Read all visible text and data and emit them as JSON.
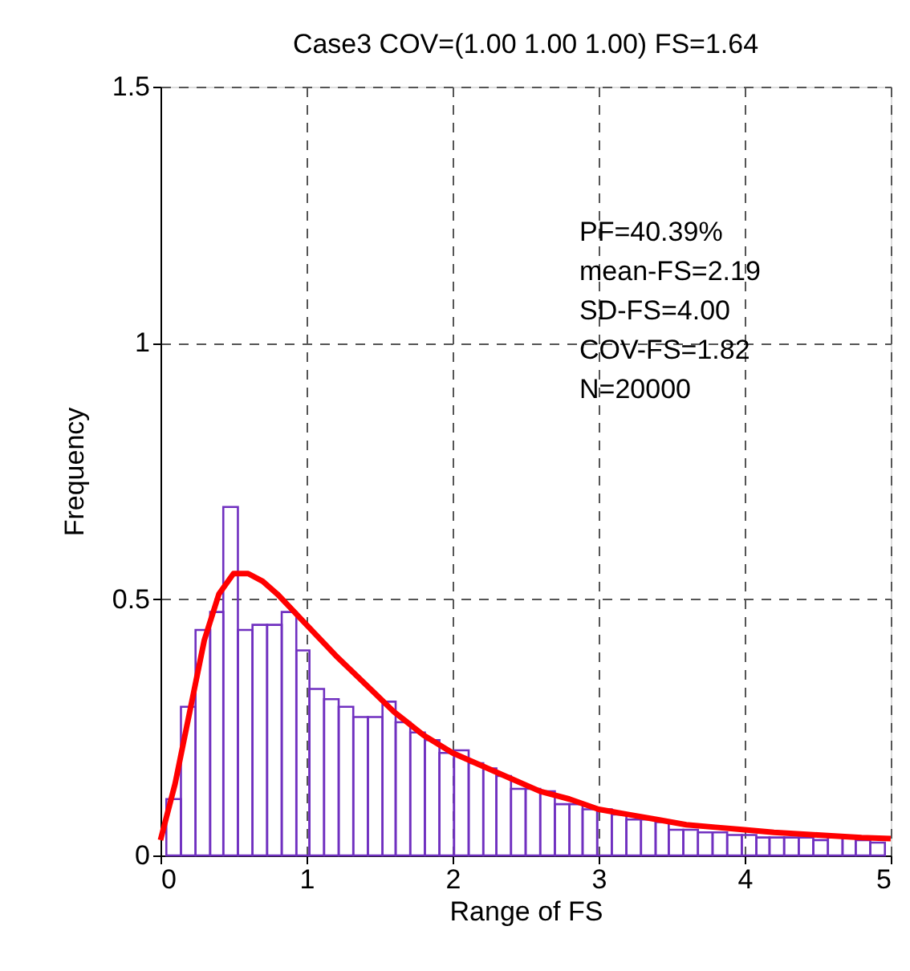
{
  "chart_data": {
    "type": "histogram",
    "title": "Case3 COV=(1.00 1.00 1.00) FS=1.64",
    "xlabel": "Range of FS",
    "ylabel": "Frequency",
    "xlim": [
      0,
      5
    ],
    "xticks": [
      0,
      1,
      2,
      3,
      4,
      5
    ],
    "ylim": [
      0,
      1.5
    ],
    "yticks": [
      0,
      0.5,
      1,
      1.5
    ],
    "grid": true,
    "annotations": [
      "PF=40.39%",
      "mean-FS=2.19",
      "SD-FS=4.00",
      "COV-FS=1.82",
      "N=20000"
    ],
    "series": [
      {
        "color": "#7030c0",
        "bins": [
          0.04,
          0.14,
          0.24,
          0.34,
          0.43,
          0.53,
          0.63,
          0.73,
          0.83,
          0.93,
          1.02,
          1.12,
          1.22,
          1.32,
          1.42,
          1.52,
          1.61,
          1.71,
          1.81,
          1.91,
          2.01,
          2.11,
          2.21,
          2.3,
          2.4,
          2.5,
          2.6,
          2.7,
          2.8,
          2.89,
          2.99,
          3.09,
          3.19,
          3.29,
          3.39,
          3.48,
          3.58,
          3.68,
          3.78,
          3.88,
          3.98,
          4.08,
          4.17,
          4.27,
          4.37,
          4.47,
          4.57,
          4.67,
          4.76,
          4.86,
          4.96
        ],
        "values": [
          0.11,
          0.29,
          0.44,
          0.475,
          0.68,
          0.44,
          0.45,
          0.45,
          0.475,
          0.4,
          0.325,
          0.305,
          0.29,
          0.27,
          0.27,
          0.3,
          0.26,
          0.24,
          0.225,
          0.2,
          0.205,
          0.18,
          0.17,
          0.155,
          0.13,
          0.13,
          0.125,
          0.1,
          0.1,
          0.09,
          0.09,
          0.08,
          0.07,
          0.07,
          0.065,
          0.05,
          0.05,
          0.045,
          0.045,
          0.04,
          0.04,
          0.035,
          0.035,
          0.035,
          0.035,
          0.03,
          0.035,
          0.035,
          0.03,
          0.025
        ]
      },
      {
        "type": "line",
        "color": "#ff0000",
        "x": [
          0,
          0.1,
          0.2,
          0.3,
          0.4,
          0.5,
          0.6,
          0.7,
          0.8,
          0.9,
          1.0,
          1.2,
          1.4,
          1.6,
          1.8,
          2.0,
          2.2,
          2.4,
          2.6,
          2.8,
          3.0,
          3.2,
          3.4,
          3.6,
          3.8,
          4.0,
          4.2,
          4.5,
          4.8,
          5.0
        ],
        "values": [
          0.03,
          0.14,
          0.28,
          0.42,
          0.51,
          0.55,
          0.55,
          0.535,
          0.51,
          0.48,
          0.45,
          0.39,
          0.335,
          0.28,
          0.235,
          0.2,
          0.175,
          0.15,
          0.125,
          0.11,
          0.09,
          0.08,
          0.07,
          0.06,
          0.055,
          0.05,
          0.045,
          0.04,
          0.035,
          0.033
        ]
      }
    ]
  }
}
